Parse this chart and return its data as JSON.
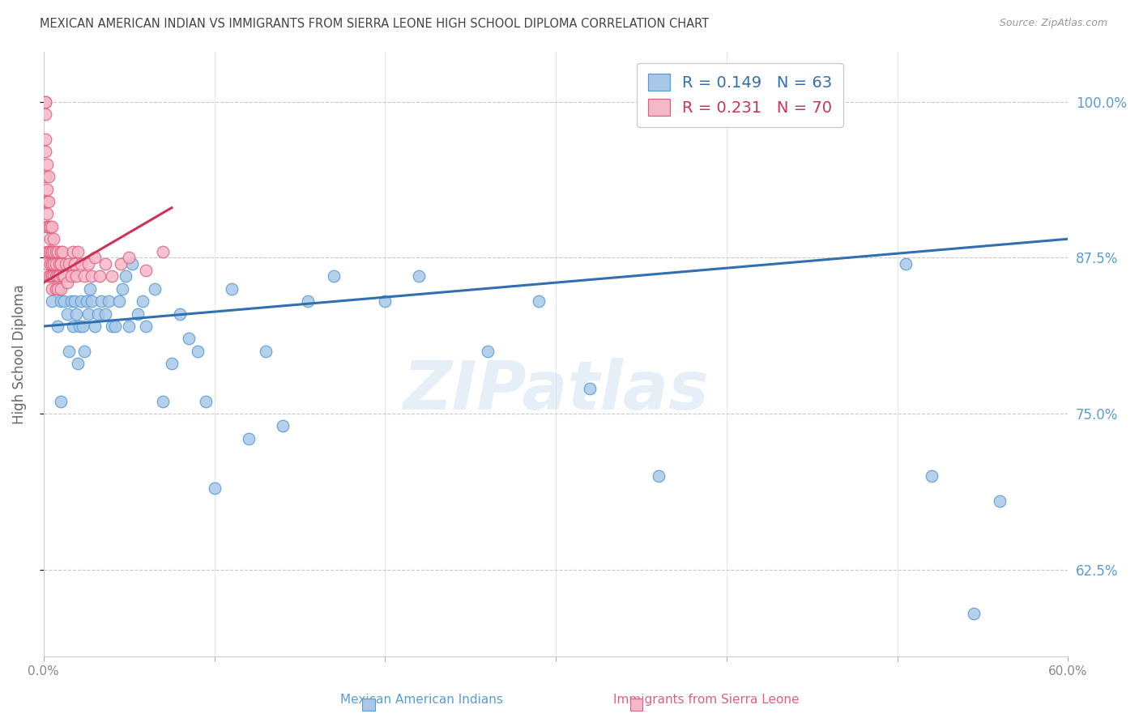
{
  "title": "MEXICAN AMERICAN INDIAN VS IMMIGRANTS FROM SIERRA LEONE HIGH SCHOOL DIPLOMA CORRELATION CHART",
  "source": "Source: ZipAtlas.com",
  "ylabel": "High School Diploma",
  "ytick_labels": [
    "62.5%",
    "75.0%",
    "87.5%",
    "100.0%"
  ],
  "ytick_values": [
    0.625,
    0.75,
    0.875,
    1.0
  ],
  "xrange": [
    0.0,
    0.6
  ],
  "yrange": [
    0.555,
    1.04
  ],
  "blue_R": 0.149,
  "blue_N": 63,
  "pink_R": 0.231,
  "pink_N": 70,
  "blue_label": "Mexican American Indians",
  "pink_label": "Immigrants from Sierra Leone",
  "blue_color": "#a8c8e8",
  "pink_color": "#f5b8c8",
  "blue_edge_color": "#5b9bd5",
  "pink_edge_color": "#e06080",
  "blue_line_color": "#3070b0",
  "pink_line_color": "#cc3355",
  "watermark": "ZIPatlas",
  "blue_scatter_x": [
    0.005,
    0.007,
    0.008,
    0.009,
    0.01,
    0.01,
    0.011,
    0.012,
    0.013,
    0.014,
    0.015,
    0.016,
    0.017,
    0.018,
    0.019,
    0.02,
    0.021,
    0.022,
    0.023,
    0.024,
    0.025,
    0.026,
    0.027,
    0.028,
    0.03,
    0.032,
    0.034,
    0.036,
    0.038,
    0.04,
    0.042,
    0.044,
    0.046,
    0.048,
    0.05,
    0.052,
    0.055,
    0.058,
    0.06,
    0.065,
    0.07,
    0.075,
    0.08,
    0.085,
    0.09,
    0.095,
    0.1,
    0.11,
    0.12,
    0.13,
    0.14,
    0.155,
    0.17,
    0.2,
    0.22,
    0.26,
    0.29,
    0.32,
    0.36,
    0.505,
    0.52,
    0.545,
    0.56
  ],
  "blue_scatter_y": [
    0.84,
    0.87,
    0.82,
    0.85,
    0.76,
    0.84,
    0.87,
    0.84,
    0.86,
    0.83,
    0.8,
    0.84,
    0.82,
    0.84,
    0.83,
    0.79,
    0.82,
    0.84,
    0.82,
    0.8,
    0.84,
    0.83,
    0.85,
    0.84,
    0.82,
    0.83,
    0.84,
    0.83,
    0.84,
    0.82,
    0.82,
    0.84,
    0.85,
    0.86,
    0.82,
    0.87,
    0.83,
    0.84,
    0.82,
    0.85,
    0.76,
    0.79,
    0.83,
    0.81,
    0.8,
    0.76,
    0.69,
    0.85,
    0.73,
    0.8,
    0.74,
    0.84,
    0.86,
    0.84,
    0.86,
    0.8,
    0.84,
    0.77,
    0.7,
    0.87,
    0.7,
    0.59,
    0.68
  ],
  "pink_scatter_x": [
    0.001,
    0.001,
    0.001,
    0.001,
    0.001,
    0.001,
    0.001,
    0.002,
    0.002,
    0.002,
    0.002,
    0.002,
    0.002,
    0.002,
    0.002,
    0.003,
    0.003,
    0.003,
    0.003,
    0.003,
    0.003,
    0.004,
    0.004,
    0.004,
    0.004,
    0.004,
    0.005,
    0.005,
    0.005,
    0.005,
    0.005,
    0.006,
    0.006,
    0.006,
    0.006,
    0.007,
    0.007,
    0.007,
    0.007,
    0.008,
    0.008,
    0.008,
    0.009,
    0.009,
    0.01,
    0.01,
    0.01,
    0.011,
    0.011,
    0.012,
    0.013,
    0.014,
    0.015,
    0.016,
    0.017,
    0.018,
    0.019,
    0.02,
    0.022,
    0.024,
    0.026,
    0.028,
    0.03,
    0.033,
    0.036,
    0.04,
    0.045,
    0.05,
    0.06,
    0.07
  ],
  "pink_scatter_y": [
    0.97,
    0.99,
    1.0,
    1.0,
    0.96,
    0.94,
    0.92,
    0.9,
    0.91,
    0.93,
    0.95,
    0.88,
    0.87,
    0.9,
    0.92,
    0.88,
    0.9,
    0.92,
    0.94,
    0.86,
    0.88,
    0.9,
    0.87,
    0.89,
    0.86,
    0.88,
    0.86,
    0.88,
    0.9,
    0.87,
    0.85,
    0.87,
    0.89,
    0.86,
    0.88,
    0.86,
    0.88,
    0.85,
    0.87,
    0.86,
    0.88,
    0.85,
    0.87,
    0.86,
    0.87,
    0.85,
    0.88,
    0.86,
    0.88,
    0.86,
    0.87,
    0.855,
    0.87,
    0.86,
    0.88,
    0.87,
    0.86,
    0.88,
    0.87,
    0.86,
    0.87,
    0.86,
    0.875,
    0.86,
    0.87,
    0.86,
    0.87,
    0.875,
    0.865,
    0.88
  ],
  "blue_line_x": [
    0.0,
    0.6
  ],
  "blue_line_y": [
    0.82,
    0.89
  ],
  "pink_line_x": [
    0.0,
    0.075
  ],
  "pink_line_y": [
    0.855,
    0.915
  ],
  "background_color": "#ffffff",
  "grid_color": "#bbbbbb",
  "title_color": "#444444",
  "right_axis_color": "#5b9bd5",
  "legend_R_color": "#3070b0",
  "legend_R_pink_color": "#cc3355",
  "xtick_left_label": "0.0%",
  "xtick_right_label": "60.0%"
}
